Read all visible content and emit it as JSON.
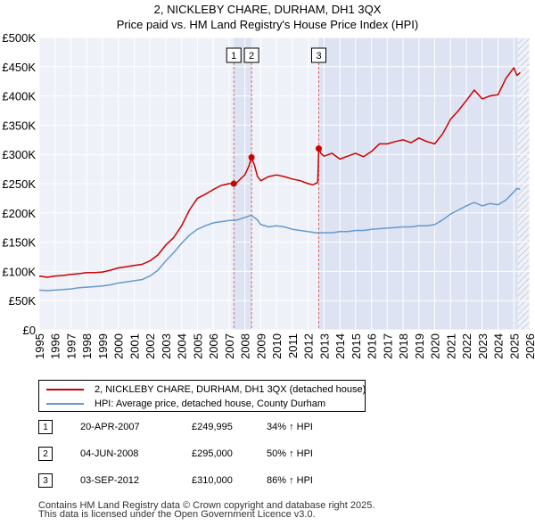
{
  "chart_data": {
    "type": "line",
    "title": "2, NICKLEBY CHARE, DURHAM, DH1 3QX",
    "subtitle": "Price paid vs. HM Land Registry's House Price Index (HPI)",
    "xlim": [
      1995,
      2026
    ],
    "ylim": [
      0,
      500000
    ],
    "x_ticks": [
      1995,
      1996,
      1997,
      1998,
      1999,
      2000,
      2001,
      2002,
      2003,
      2004,
      2005,
      2006,
      2007,
      2008,
      2009,
      2010,
      2011,
      2012,
      2013,
      2014,
      2015,
      2016,
      2017,
      2018,
      2019,
      2020,
      2021,
      2022,
      2023,
      2024,
      2025,
      2026
    ],
    "y_ticks": [
      {
        "value": 0,
        "label": "£0"
      },
      {
        "value": 50000,
        "label": "£50K"
      },
      {
        "value": 100000,
        "label": "£100K"
      },
      {
        "value": 150000,
        "label": "£150K"
      },
      {
        "value": 200000,
        "label": "£200K"
      },
      {
        "value": 250000,
        "label": "£250K"
      },
      {
        "value": 300000,
        "label": "£300K"
      },
      {
        "value": 350000,
        "label": "£350K"
      },
      {
        "value": 400000,
        "label": "£400K"
      },
      {
        "value": 450000,
        "label": "£450K"
      },
      {
        "value": 500000,
        "label": "£500K"
      }
    ],
    "grid": true,
    "hatched_after": 2025.25,
    "series": [
      {
        "name": "2, NICKLEBY CHARE, DURHAM, DH1 3QX (detached house)",
        "color": "#cc0000",
        "x": [
          1995,
          1995.5,
          1996,
          1996.5,
          1997,
          1997.5,
          1998,
          1998.5,
          1999,
          1999.5,
          2000,
          2000.5,
          2001,
          2001.5,
          2002,
          2002.5,
          2003,
          2003.5,
          2004,
          2004.5,
          2005,
          2005.5,
          2006,
          2006.5,
          2007,
          2007.3,
          2007.5,
          2007.8,
          2008,
          2008.25,
          2008.42,
          2008.6,
          2008.8,
          2009,
          2009.5,
          2010,
          2010.5,
          2011,
          2011.5,
          2012,
          2012.3,
          2012.6,
          2012.67,
          2012.8,
          2013,
          2013.5,
          2014,
          2014.5,
          2015,
          2015.5,
          2016,
          2016.5,
          2017,
          2017.5,
          2018,
          2018.5,
          2019,
          2019.5,
          2020,
          2020.5,
          2021,
          2021.5,
          2022,
          2022.5,
          2023,
          2023.5,
          2024,
          2024.5,
          2025,
          2025.2,
          2025.4
        ],
        "values": [
          92000,
          90000,
          92000,
          93000,
          95000,
          96000,
          98000,
          98000,
          99000,
          102000,
          106000,
          108000,
          110000,
          112000,
          118000,
          128000,
          145000,
          158000,
          178000,
          205000,
          225000,
          232000,
          240000,
          247000,
          250000,
          249995,
          252000,
          260000,
          265000,
          280000,
          295000,
          282000,
          262000,
          255000,
          262000,
          265000,
          262000,
          258000,
          255000,
          250000,
          248000,
          252000,
          310000,
          302000,
          297000,
          302000,
          292000,
          297000,
          302000,
          296000,
          305000,
          318000,
          318000,
          322000,
          325000,
          320000,
          328000,
          322000,
          318000,
          335000,
          360000,
          375000,
          392000,
          410000,
          395000,
          400000,
          402000,
          430000,
          448000,
          435000,
          440000
        ]
      },
      {
        "name": "HPI: Average price, detached house, County Durham",
        "color": "#6699cc",
        "x": [
          1995,
          1995.5,
          1996,
          1996.5,
          1997,
          1997.5,
          1998,
          1998.5,
          1999,
          1999.5,
          2000,
          2000.5,
          2001,
          2001.5,
          2002,
          2002.5,
          2003,
          2003.5,
          2004,
          2004.5,
          2005,
          2005.5,
          2006,
          2006.5,
          2007,
          2007.3,
          2007.5,
          2008,
          2008.4,
          2008.8,
          2009,
          2009.5,
          2010,
          2010.5,
          2011,
          2011.5,
          2012,
          2012.5,
          2013,
          2013.5,
          2014,
          2014.5,
          2015,
          2015.5,
          2016,
          2016.5,
          2017,
          2017.5,
          2018,
          2018.5,
          2019,
          2019.5,
          2020,
          2020.5,
          2021,
          2021.5,
          2022,
          2022.5,
          2023,
          2023.5,
          2024,
          2024.5,
          2025,
          2025.2,
          2025.4
        ],
        "values": [
          68000,
          67000,
          68000,
          69000,
          70000,
          72000,
          73000,
          74000,
          75000,
          77000,
          80000,
          82000,
          84000,
          86000,
          92000,
          102000,
          118000,
          132000,
          148000,
          162000,
          172000,
          178000,
          183000,
          185000,
          187000,
          187000,
          188000,
          192000,
          196000,
          188000,
          180000,
          176000,
          178000,
          176000,
          172000,
          170000,
          168000,
          166000,
          166000,
          166000,
          168000,
          168000,
          170000,
          170000,
          172000,
          173000,
          174000,
          175000,
          176000,
          176000,
          178000,
          178000,
          180000,
          188000,
          198000,
          205000,
          212000,
          218000,
          212000,
          216000,
          214000,
          222000,
          236000,
          242000,
          240000
        ]
      }
    ],
    "sales": [
      {
        "id": "1",
        "date": "20-APR-2007",
        "x": 2007.3,
        "price": 249995,
        "price_label": "£249,995",
        "hpi": "34% ↑ HPI"
      },
      {
        "id": "2",
        "date": "04-JUN-2008",
        "x": 2008.42,
        "price": 295000,
        "price_label": "£295,000",
        "hpi": "50% ↑ HPI"
      },
      {
        "id": "3",
        "date": "03-SEP-2012",
        "x": 2012.67,
        "price": 310000,
        "price_label": "£310,000",
        "hpi": "86% ↑ HPI"
      }
    ]
  },
  "legend": {
    "property_label": "2, NICKLEBY CHARE, DURHAM, DH1 3QX (detached house)",
    "hpi_label": "HPI: Average price, detached house, County Durham"
  },
  "footer": {
    "line1": "Contains HM Land Registry data © Crown copyright and database right 2025.",
    "line2": "This data is licensed under the Open Government Licence v3.0."
  },
  "colors": {
    "property": "#cc0000",
    "hpi": "#6699cc",
    "plot_bg": "#eef1f8",
    "shade": "#dde3f3",
    "marker_line": "#dd6666"
  }
}
